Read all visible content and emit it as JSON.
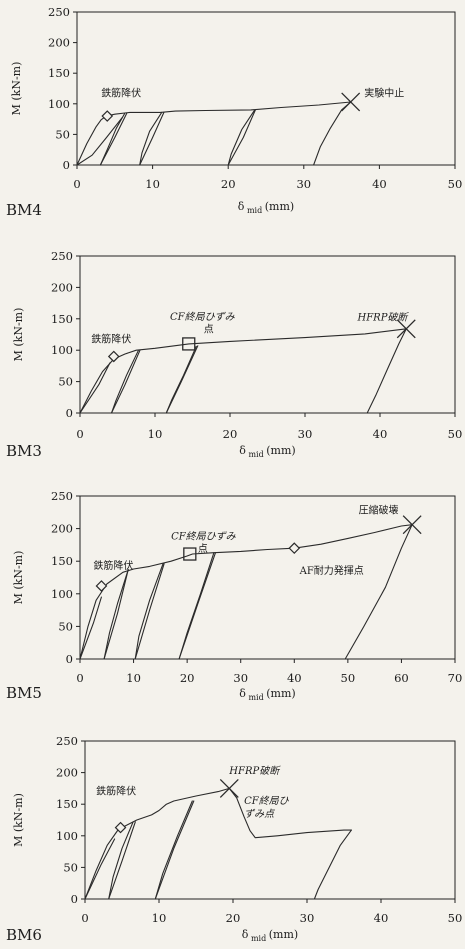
{
  "chart_data": [
    {
      "type": "line",
      "panel_label": "BM4",
      "ylabel": "M (kN-m)",
      "xlabel": {
        "main": "δ",
        "sub": "mid",
        "unit": "(mm)"
      },
      "xlim": [
        0,
        50
      ],
      "ylim": [
        0,
        250
      ],
      "xticks": [
        "0",
        "10",
        "20",
        "30",
        "40",
        "50"
      ],
      "yticks": [
        "0",
        "50",
        "100",
        "150",
        "200",
        "250"
      ],
      "grid": false,
      "series": [
        {
          "points": [
            [
              0,
              0
            ],
            [
              1.3,
              35
            ],
            [
              2.5,
              62
            ],
            [
              3.2,
              74
            ],
            [
              3.9,
              80
            ],
            [
              5,
              83
            ],
            [
              7,
              86
            ],
            [
              11,
              86
            ],
            [
              13,
              88
            ],
            [
              17,
              89
            ],
            [
              23,
              90
            ],
            [
              27,
              94
            ],
            [
              32,
              98
            ],
            [
              36.2,
              103
            ]
          ]
        },
        {
          "points": [
            [
              36.2,
              103
            ],
            [
              35,
              90
            ],
            [
              33.5,
              60
            ],
            [
              32.2,
              30
            ],
            [
              31.3,
              0
            ]
          ]
        },
        {
          "points": [
            [
              0,
              0
            ],
            [
              2,
              16
            ],
            [
              3.9,
              45
            ],
            [
              6,
              78
            ]
          ]
        },
        {
          "points": [
            [
              6.3,
              84
            ],
            [
              5.2,
              60
            ],
            [
              4,
              25
            ],
            [
              3.1,
              0
            ]
          ]
        },
        {
          "points": [
            [
              3.1,
              0
            ],
            [
              5,
              45
            ],
            [
              6.6,
              85
            ]
          ]
        },
        {
          "points": [
            [
              11.2,
              86
            ],
            [
              9.6,
              55
            ],
            [
              8.6,
              20
            ],
            [
              8.3,
              0
            ]
          ]
        },
        {
          "points": [
            [
              8.3,
              0
            ],
            [
              10,
              45
            ],
            [
              11.5,
              86
            ]
          ]
        },
        {
          "points": [
            [
              23.5,
              90
            ],
            [
              21.8,
              58
            ],
            [
              20.4,
              18
            ],
            [
              20.0,
              0
            ]
          ]
        },
        {
          "points": [
            [
              20.0,
              0
            ],
            [
              22,
              45
            ],
            [
              23.6,
              90
            ]
          ]
        }
      ],
      "markers": [
        {
          "shape": "diamond",
          "x": 4.0,
          "y": 80
        },
        {
          "shape": "x",
          "x": 36.2,
          "y": 103
        }
      ],
      "annotations": [
        {
          "text": "鉄筋降伏",
          "x": 3.2,
          "y": 112
        },
        {
          "text": "実験中止",
          "x": 38.0,
          "y": 112
        }
      ]
    },
    {
      "type": "line",
      "panel_label": "BM3",
      "ylabel": "M (kN-m)",
      "xlabel": {
        "main": "δ",
        "sub": "mid",
        "unit": "(mm)"
      },
      "xlim": [
        0,
        50
      ],
      "ylim": [
        0,
        250
      ],
      "xticks": [
        "0",
        "10",
        "20",
        "30",
        "40",
        "50"
      ],
      "yticks": [
        "0",
        "50",
        "100",
        "150",
        "200",
        "250"
      ],
      "grid": false,
      "series": [
        {
          "points": [
            [
              0,
              0
            ],
            [
              1.5,
              35
            ],
            [
              3,
              66
            ],
            [
              4.5,
              86
            ],
            [
              6,
              94
            ],
            [
              7.5,
              100
            ],
            [
              10,
              103
            ],
            [
              14.5,
              110
            ],
            [
              20,
              114
            ],
            [
              30,
              120
            ],
            [
              38,
              126
            ],
            [
              43.5,
              134
            ]
          ]
        },
        {
          "points": [
            [
              43.5,
              134
            ],
            [
              42.5,
              110
            ],
            [
              41,
              70
            ],
            [
              39.5,
              30
            ],
            [
              38.3,
              0
            ]
          ]
        },
        {
          "points": [
            [
              7.8,
              100
            ],
            [
              6.2,
              60
            ],
            [
              4.8,
              20
            ],
            [
              4.2,
              0
            ]
          ]
        },
        {
          "points": [
            [
              4.2,
              0
            ],
            [
              6,
              45
            ],
            [
              8,
              100
            ]
          ]
        },
        {
          "points": [
            [
              15.5,
              106
            ],
            [
              13.8,
              60
            ],
            [
              12.2,
              20
            ],
            [
              11.5,
              0
            ]
          ]
        },
        {
          "points": [
            [
              11.5,
              0
            ],
            [
              13.5,
              50
            ],
            [
              15.7,
              107
            ]
          ]
        },
        {
          "points": [
            [
              0,
              0
            ],
            [
              2.5,
              45
            ],
            [
              4,
              80
            ]
          ]
        }
      ],
      "markers": [
        {
          "shape": "diamond",
          "x": 4.5,
          "y": 90
        },
        {
          "shape": "square",
          "x": 14.5,
          "y": 110
        },
        {
          "shape": "x",
          "x": 43.5,
          "y": 134
        }
      ],
      "annotations": [
        {
          "text": "CF終局ひずみ",
          "x": 12.0,
          "y": 148
        },
        {
          "text": "点",
          "x": 16.5,
          "y": 128
        },
        {
          "text": "HFRP破断",
          "x": 37.0,
          "y": 147
        },
        {
          "text": "鉄筋降伏",
          "x": 1.5,
          "y": 112
        }
      ]
    },
    {
      "type": "line",
      "panel_label": "BM5",
      "ylabel": "M (kN-m)",
      "xlabel": {
        "main": "δ",
        "sub": "mid",
        "unit": "(mm)"
      },
      "xlim": [
        0,
        70
      ],
      "ylim": [
        0,
        250
      ],
      "xticks": [
        "0",
        "10",
        "20",
        "30",
        "40",
        "50",
        "60",
        "70"
      ],
      "yticks": [
        "0",
        "50",
        "100",
        "150",
        "200",
        "250"
      ],
      "grid": false,
      "series": [
        {
          "points": [
            [
              0,
              0
            ],
            [
              1.5,
              50
            ],
            [
              3,
              90
            ],
            [
              5,
              115
            ],
            [
              8,
              133
            ],
            [
              10,
              138
            ],
            [
              13,
              142
            ],
            [
              17,
              150
            ],
            [
              20,
              158
            ],
            [
              21,
              161
            ],
            [
              25,
              163
            ],
            [
              30,
              165
            ],
            [
              35,
              168
            ],
            [
              40,
              170
            ],
            [
              45,
              176
            ],
            [
              50,
              185
            ],
            [
              55,
              194
            ],
            [
              60,
              204
            ],
            [
              62,
              206
            ]
          ]
        },
        {
          "points": [
            [
              62,
              206
            ],
            [
              60,
              170
            ],
            [
              57,
              110
            ],
            [
              53,
              50
            ],
            [
              49.5,
              0
            ]
          ]
        },
        {
          "points": [
            [
              9,
              137
            ],
            [
              7,
              85
            ],
            [
              5.5,
              40
            ],
            [
              4.5,
              0
            ]
          ]
        },
        {
          "points": [
            [
              4.5,
              0
            ],
            [
              7,
              70
            ],
            [
              9,
              137
            ]
          ]
        },
        {
          "points": [
            [
              15.5,
              146
            ],
            [
              13,
              90
            ],
            [
              11,
              35
            ],
            [
              10.3,
              0
            ]
          ]
        },
        {
          "points": [
            [
              10.3,
              0
            ],
            [
              13,
              75
            ],
            [
              15.7,
              146
            ]
          ]
        },
        {
          "points": [
            [
              25,
              163
            ],
            [
              22.5,
              100
            ],
            [
              20,
              40
            ],
            [
              18.5,
              0
            ]
          ]
        },
        {
          "points": [
            [
              18.5,
              0
            ],
            [
              22,
              85
            ],
            [
              25.3,
              163
            ]
          ]
        },
        {
          "points": [
            [
              0,
              0
            ],
            [
              2.5,
              55
            ],
            [
              4,
              95
            ]
          ]
        }
      ],
      "markers": [
        {
          "shape": "diamond",
          "x": 4.0,
          "y": 112
        },
        {
          "shape": "square",
          "x": 20.5,
          "y": 161
        },
        {
          "shape": "diamond",
          "x": 40.0,
          "y": 170
        },
        {
          "shape": "x",
          "x": 62.0,
          "y": 206
        }
      ],
      "annotations": [
        {
          "text": "CF終局ひずみ",
          "x": 17.0,
          "y": 183
        },
        {
          "text": "点",
          "x": 22.0,
          "y": 164
        },
        {
          "text": "圧縮破壊",
          "x": 52.0,
          "y": 223
        },
        {
          "text": "鉄筋降伏",
          "x": 2.5,
          "y": 138
        },
        {
          "text": "AF耐力発揮点",
          "x": 41.0,
          "y": 130
        }
      ]
    },
    {
      "type": "line",
      "panel_label": "BM6",
      "ylabel": "M (kN-m)",
      "xlabel": {
        "main": "δ",
        "sub": "mid",
        "unit": "(mm)"
      },
      "xlim": [
        0,
        50
      ],
      "ylim": [
        0,
        250
      ],
      "xticks": [
        "0",
        "10",
        "20",
        "30",
        "40",
        "50"
      ],
      "yticks": [
        "0",
        "50",
        "100",
        "150",
        "200",
        "250"
      ],
      "grid": false,
      "series": [
        {
          "points": [
            [
              0,
              0
            ],
            [
              1.5,
              45
            ],
            [
              3,
              85
            ],
            [
              4.5,
              110
            ],
            [
              7,
              125
            ],
            [
              9,
              133
            ],
            [
              10,
              140
            ],
            [
              11,
              150
            ],
            [
              12,
              155
            ],
            [
              15,
              163
            ],
            [
              18,
              170
            ],
            [
              19.5,
              175
            ]
          ]
        },
        {
          "points": [
            [
              19.5,
              175
            ],
            [
              20.5,
              160
            ],
            [
              21.5,
              130
            ],
            [
              22.3,
              108
            ],
            [
              23,
              97
            ],
            [
              24,
              98
            ],
            [
              26,
              100
            ],
            [
              30,
              105
            ],
            [
              35,
              109
            ],
            [
              36,
              109
            ]
          ]
        },
        {
          "points": [
            [
              36,
              109
            ],
            [
              34.5,
              85
            ],
            [
              33,
              50
            ],
            [
              31.5,
              15
            ],
            [
              31,
              0
            ]
          ]
        },
        {
          "points": [
            [
              6.5,
              122
            ],
            [
              5,
              80
            ],
            [
              3.8,
              35
            ],
            [
              3.2,
              0
            ]
          ]
        },
        {
          "points": [
            [
              3.2,
              0
            ],
            [
              5,
              60
            ],
            [
              6.8,
              122
            ]
          ]
        },
        {
          "points": [
            [
              14.5,
              155
            ],
            [
              12.5,
              100
            ],
            [
              10.5,
              40
            ],
            [
              9.5,
              0
            ]
          ]
        },
        {
          "points": [
            [
              9.5,
              0
            ],
            [
              12,
              80
            ],
            [
              14.7,
              155
            ]
          ]
        },
        {
          "points": [
            [
              0,
              0
            ],
            [
              2.2,
              55
            ],
            [
              4,
              95
            ]
          ]
        }
      ],
      "markers": [
        {
          "shape": "diamond",
          "x": 4.8,
          "y": 113
        },
        {
          "shape": "x",
          "x": 19.5,
          "y": 175
        }
      ],
      "annotations": [
        {
          "text": "HFRP破断",
          "x": 19.5,
          "y": 198
        },
        {
          "text": "鉄筋降伏",
          "x": 1.5,
          "y": 165
        },
        {
          "text": "CF終局ひ",
          "x": 21.5,
          "y": 150
        },
        {
          "text": "ずみ点",
          "x": 21.5,
          "y": 130
        }
      ]
    }
  ]
}
